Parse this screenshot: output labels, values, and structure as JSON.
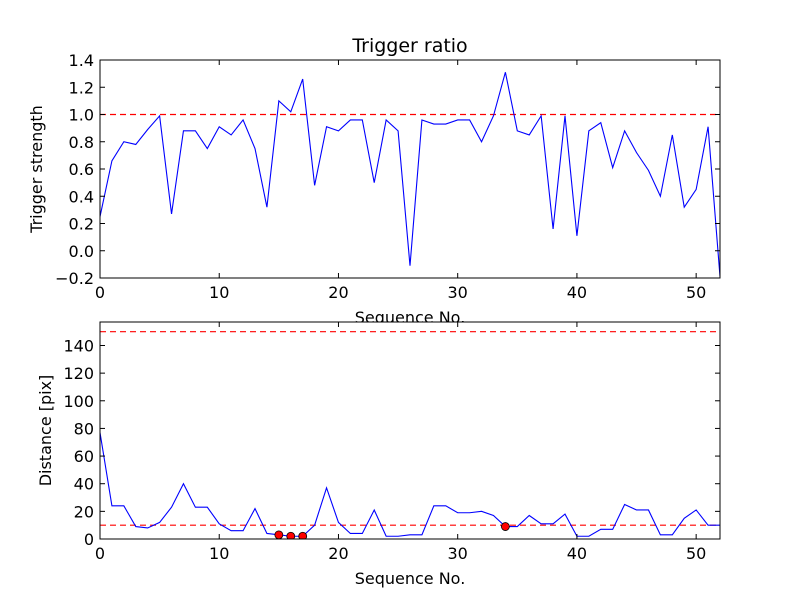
{
  "chart_data": [
    {
      "type": "line",
      "title": "Trigger ratio",
      "xlabel": "Sequence No.",
      "ylabel": "Trigger strength",
      "xlim": [
        0,
        52
      ],
      "ylim": [
        -0.2,
        1.4
      ],
      "xticks": [
        "0",
        "10",
        "20",
        "30",
        "40",
        "50"
      ],
      "yticks": [
        "−0.2",
        "0.0",
        "0.2",
        "0.4",
        "0.6",
        "0.8",
        "1.0",
        "1.2",
        "1.4"
      ],
      "grid": false,
      "series": [
        {
          "color": "#0000ff",
          "x": [
            0,
            1,
            2,
            3,
            4,
            5,
            6,
            7,
            8,
            9,
            10,
            11,
            12,
            13,
            14,
            15,
            16,
            17,
            18,
            19,
            20,
            21,
            22,
            23,
            24,
            25,
            26,
            27,
            28,
            29,
            30,
            31,
            32,
            33,
            34,
            35,
            36,
            37,
            38,
            39,
            40,
            41,
            42,
            43,
            44,
            45,
            46,
            47,
            48,
            49,
            50,
            51,
            52
          ],
          "y": [
            0.25,
            0.66,
            0.8,
            0.78,
            0.89,
            0.99,
            0.27,
            0.88,
            0.88,
            0.75,
            0.91,
            0.85,
            0.96,
            0.75,
            0.32,
            1.1,
            1.02,
            1.26,
            0.48,
            0.91,
            0.88,
            0.96,
            0.96,
            0.5,
            0.96,
            0.88,
            -0.11,
            0.96,
            0.93,
            0.93,
            0.96,
            0.96,
            0.8,
            0.99,
            1.31,
            0.88,
            0.85,
            0.99,
            0.16,
            0.99,
            0.11,
            0.88,
            0.94,
            0.61,
            0.88,
            0.72,
            0.59,
            0.4,
            0.85,
            0.32,
            0.45,
            0.91,
            -0.19
          ]
        }
      ],
      "hlines": [
        {
          "y": 1.0,
          "color": "#ff0000",
          "style": "dashed"
        }
      ]
    },
    {
      "type": "line",
      "title": "",
      "xlabel": "Sequence No.",
      "ylabel": "Distance [pix]",
      "xlim": [
        0,
        52
      ],
      "ylim": [
        0,
        157
      ],
      "xticks": [
        "0",
        "10",
        "20",
        "30",
        "40",
        "50"
      ],
      "yticks": [
        "0",
        "20",
        "40",
        "60",
        "80",
        "100",
        "120",
        "140"
      ],
      "grid": false,
      "series": [
        {
          "color": "#0000ff",
          "x": [
            0,
            1,
            2,
            3,
            4,
            5,
            6,
            7,
            8,
            9,
            10,
            11,
            12,
            13,
            14,
            15,
            16,
            17,
            18,
            19,
            20,
            21,
            22,
            23,
            24,
            25,
            26,
            27,
            28,
            29,
            30,
            31,
            32,
            33,
            34,
            35,
            36,
            37,
            38,
            39,
            40,
            41,
            42,
            43,
            44,
            45,
            46,
            47,
            48,
            49,
            50,
            51,
            52
          ],
          "y": [
            77,
            24,
            24,
            9,
            8,
            12,
            23,
            40,
            23,
            23,
            11,
            6,
            6,
            22,
            4,
            3,
            2,
            2,
            10,
            37,
            12,
            4,
            4,
            21,
            2,
            2,
            3,
            3,
            24,
            24,
            19,
            19,
            20,
            17,
            9,
            9,
            17,
            11,
            11,
            18,
            2,
            2,
            7,
            7,
            25,
            21,
            21,
            3,
            3,
            15,
            21,
            10,
            10
          ]
        },
        {
          "color": "#ff0000",
          "marker": "circle",
          "x": [
            15,
            16,
            17,
            34
          ],
          "y": [
            3,
            2,
            2,
            9
          ]
        }
      ],
      "hlines": [
        {
          "y": 150,
          "color": "#ff0000",
          "style": "dashed"
        },
        {
          "y": 10,
          "color": "#ff0000",
          "style": "dashed"
        }
      ]
    }
  ]
}
